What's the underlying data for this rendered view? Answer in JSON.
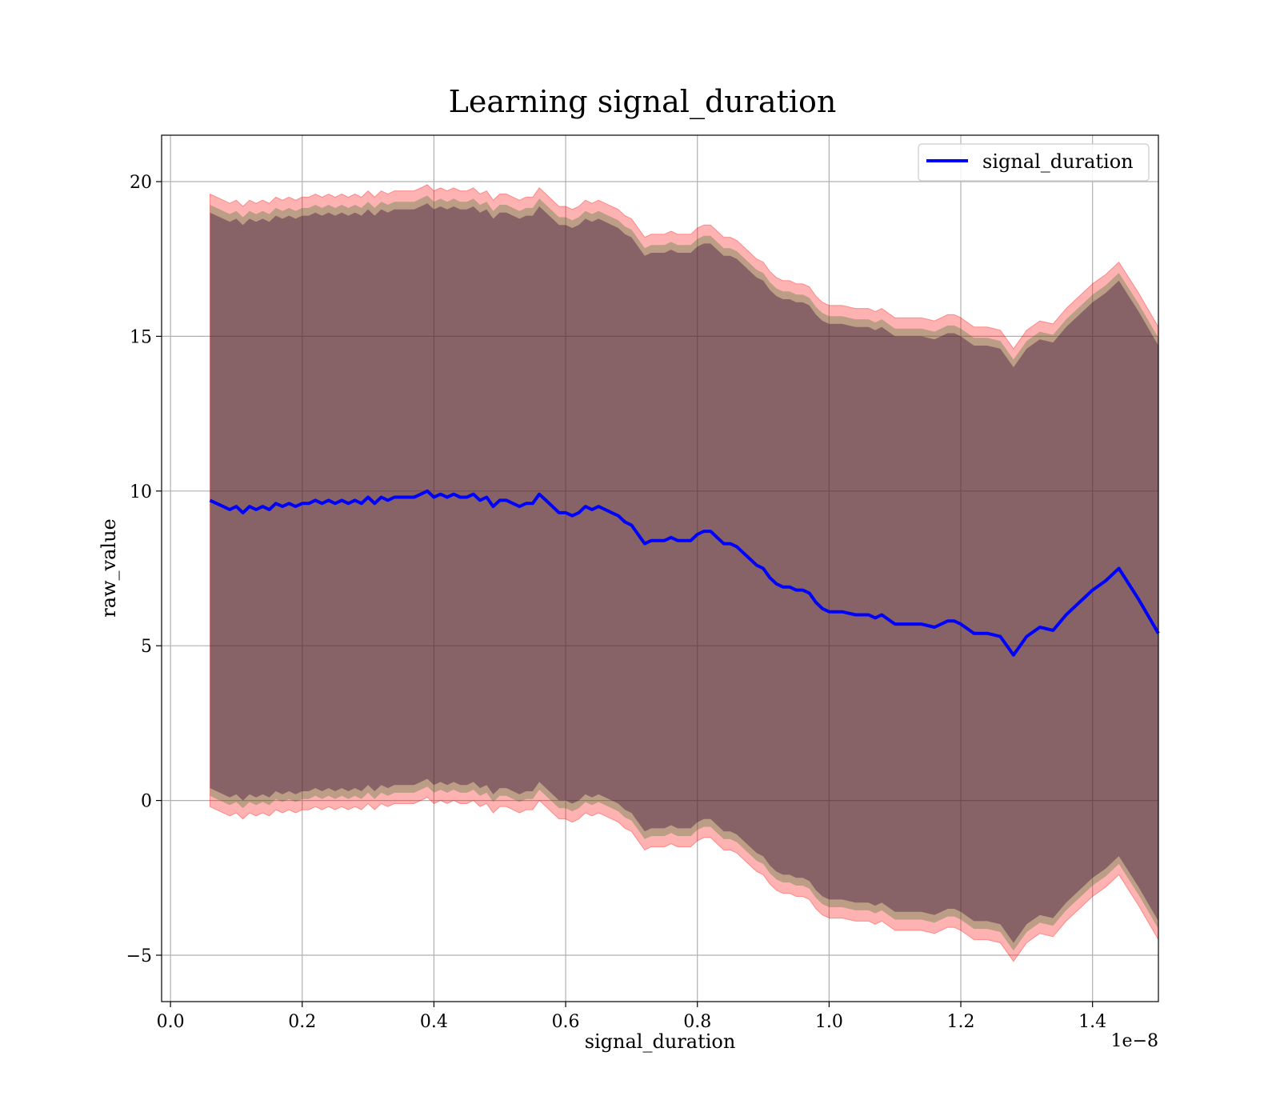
{
  "chart_data": {
    "type": "line",
    "title": "Learning signal_duration",
    "xlabel": "signal_duration",
    "ylabel": "raw_value",
    "x_offset_label": "1e−8",
    "xlim": [
      -0.0135,
      1.5
    ],
    "ylim": [
      -6.5,
      21.5
    ],
    "grid": true,
    "legend": {
      "position": "top-right",
      "entries": [
        "signal_duration"
      ]
    },
    "x_ticks": [
      {
        "value": 0.0,
        "label": "0.0"
      },
      {
        "value": 0.2,
        "label": "0.2"
      },
      {
        "value": 0.4,
        "label": "0.4"
      },
      {
        "value": 0.6,
        "label": "0.6"
      },
      {
        "value": 0.8,
        "label": "0.8"
      },
      {
        "value": 1.0,
        "label": "1.0"
      },
      {
        "value": 1.2,
        "label": "1.2"
      },
      {
        "value": 1.4,
        "label": "1.4"
      }
    ],
    "y_ticks": [
      {
        "value": -5,
        "label": "−5"
      },
      {
        "value": 0,
        "label": "0"
      },
      {
        "value": 5,
        "label": "5"
      },
      {
        "value": 10,
        "label": "10"
      },
      {
        "value": 15,
        "label": "15"
      },
      {
        "value": 20,
        "label": "20"
      }
    ],
    "colors": {
      "line": "#0000ff",
      "band_outer": "#ff0000",
      "band_inner": "#1f6f1f",
      "band_core": "#3a0a3a",
      "grid": "#b0b0b0"
    },
    "series": [
      {
        "name": "signal_duration",
        "x": [
          0.06,
          0.07,
          0.08,
          0.09,
          0.1,
          0.11,
          0.12,
          0.13,
          0.14,
          0.15,
          0.16,
          0.17,
          0.18,
          0.19,
          0.2,
          0.21,
          0.22,
          0.23,
          0.24,
          0.25,
          0.26,
          0.27,
          0.28,
          0.29,
          0.3,
          0.31,
          0.32,
          0.33,
          0.34,
          0.35,
          0.36,
          0.37,
          0.38,
          0.39,
          0.4,
          0.41,
          0.42,
          0.43,
          0.44,
          0.45,
          0.46,
          0.47,
          0.48,
          0.49,
          0.5,
          0.51,
          0.52,
          0.53,
          0.54,
          0.55,
          0.56,
          0.57,
          0.58,
          0.59,
          0.6,
          0.61,
          0.62,
          0.63,
          0.64,
          0.65,
          0.66,
          0.67,
          0.68,
          0.69,
          0.7,
          0.71,
          0.72,
          0.73,
          0.74,
          0.75,
          0.76,
          0.77,
          0.78,
          0.79,
          0.8,
          0.81,
          0.82,
          0.83,
          0.84,
          0.85,
          0.86,
          0.87,
          0.88,
          0.89,
          0.9,
          0.91,
          0.92,
          0.93,
          0.94,
          0.95,
          0.96,
          0.97,
          0.98,
          0.99,
          1.0,
          1.02,
          1.04,
          1.06,
          1.07,
          1.08,
          1.1,
          1.12,
          1.14,
          1.16,
          1.18,
          1.19,
          1.2,
          1.22,
          1.24,
          1.26,
          1.28,
          1.3,
          1.32,
          1.34,
          1.36,
          1.38,
          1.4,
          1.42,
          1.44,
          1.47,
          1.5
        ],
        "y": [
          9.7,
          9.6,
          9.5,
          9.4,
          9.5,
          9.3,
          9.5,
          9.4,
          9.5,
          9.4,
          9.6,
          9.5,
          9.6,
          9.5,
          9.6,
          9.6,
          9.7,
          9.6,
          9.7,
          9.6,
          9.7,
          9.6,
          9.7,
          9.6,
          9.8,
          9.6,
          9.8,
          9.7,
          9.8,
          9.8,
          9.8,
          9.8,
          9.9,
          10.0,
          9.8,
          9.9,
          9.8,
          9.9,
          9.8,
          9.8,
          9.9,
          9.7,
          9.8,
          9.5,
          9.7,
          9.7,
          9.6,
          9.5,
          9.6,
          9.6,
          9.9,
          9.7,
          9.5,
          9.3,
          9.3,
          9.2,
          9.3,
          9.5,
          9.4,
          9.5,
          9.4,
          9.3,
          9.2,
          9.0,
          8.9,
          8.6,
          8.3,
          8.4,
          8.4,
          8.4,
          8.5,
          8.4,
          8.4,
          8.4,
          8.6,
          8.7,
          8.7,
          8.5,
          8.3,
          8.3,
          8.2,
          8.0,
          7.8,
          7.6,
          7.5,
          7.2,
          7.0,
          6.9,
          6.9,
          6.8,
          6.8,
          6.7,
          6.4,
          6.2,
          6.1,
          6.1,
          6.0,
          6.0,
          5.9,
          6.0,
          5.7,
          5.7,
          5.7,
          5.6,
          5.8,
          5.8,
          5.7,
          5.4,
          5.4,
          5.3,
          4.7,
          5.3,
          5.6,
          5.5,
          6.0,
          6.4,
          6.8,
          7.1,
          7.5,
          6.5,
          5.4
        ]
      }
    ],
    "band": {
      "outer_upper_offset": 9.9,
      "outer_lower_offset": -9.9,
      "inner_upper_offset": 9.55,
      "inner_lower_offset": -9.55,
      "core_upper_offset": 9.3,
      "core_lower_offset": -9.3
    }
  }
}
